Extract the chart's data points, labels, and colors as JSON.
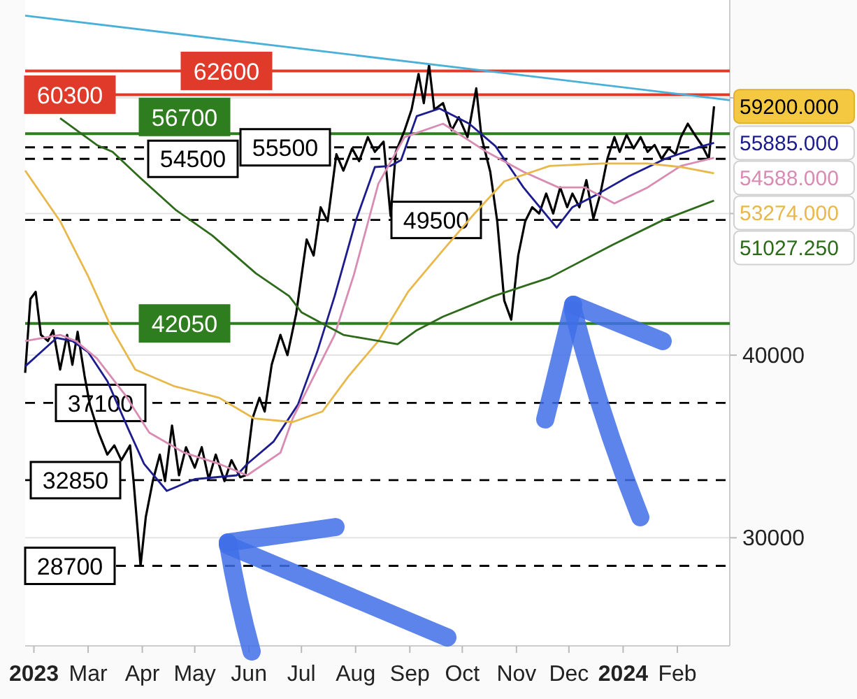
{
  "chart_data": {
    "type": "line",
    "log": true,
    "grid": "y",
    "legend": false,
    "xlim": [
      "2023-01-24",
      "2024-03-02"
    ],
    "ylim": [
      25300,
      70000
    ],
    "yticks": [
      30000,
      40000,
      {
        "value": 50000,
        "label": null
      },
      {
        "value": 60000,
        "label": null
      }
    ],
    "xticks": [
      {
        "value": "2023-01-29",
        "label": "2023"
      },
      {
        "value": "2023-03-01",
        "label": "Mar"
      },
      {
        "value": "2023-04-01",
        "label": "Apr"
      },
      {
        "value": "2023-05-01",
        "label": "May"
      },
      {
        "value": "2023-06-01",
        "label": "Jun"
      },
      {
        "value": "2023-07-01",
        "label": "Jul"
      },
      {
        "value": "2023-08-01",
        "label": "Aug"
      },
      {
        "value": "2023-09-01",
        "label": "Sep"
      },
      {
        "value": "2023-10-01",
        "label": "Oct"
      },
      {
        "value": "2023-11-01",
        "label": "Nov"
      },
      {
        "value": "2023-12-01",
        "label": "Dec"
      },
      {
        "value": "2024-01-01",
        "label": "2024"
      },
      {
        "value": "2024-02-01",
        "label": "Feb"
      }
    ],
    "series": [
      {
        "color": "#000000",
        "x": [
          "2023-01-24",
          "2023-01-27",
          "2023-01-30",
          "2023-02-02",
          "2023-02-06",
          "2023-02-09",
          "2023-02-13",
          "2023-02-17",
          "2023-02-20",
          "2023-02-23",
          "2023-02-27",
          "2023-03-02",
          "2023-03-07",
          "2023-03-12",
          "2023-03-16",
          "2023-03-20",
          "2023-03-25",
          "2023-03-27",
          "2023-03-29",
          "2023-03-31",
          "2023-04-03",
          "2023-04-07",
          "2023-04-11",
          "2023-04-14",
          "2023-04-18",
          "2023-04-22",
          "2023-04-26",
          "2023-05-01",
          "2023-05-05",
          "2023-05-09",
          "2023-05-13",
          "2023-05-18",
          "2023-05-22",
          "2023-05-27",
          "2023-05-30",
          "2023-06-03",
          "2023-06-07",
          "2023-06-10",
          "2023-06-14",
          "2023-06-19",
          "2023-06-23",
          "2023-06-28",
          "2023-07-04",
          "2023-07-08",
          "2023-07-12",
          "2023-07-16",
          "2023-07-21",
          "2023-07-25",
          "2023-07-30",
          "2023-08-03",
          "2023-08-08",
          "2023-08-12",
          "2023-08-17",
          "2023-08-21",
          "2023-08-24",
          "2023-08-29",
          "2023-09-02",
          "2023-09-06",
          "2023-09-09",
          "2023-09-12",
          "2023-09-15",
          "2023-09-20",
          "2023-09-25",
          "2023-09-29",
          "2023-10-04",
          "2023-10-09",
          "2023-10-12",
          "2023-10-17",
          "2023-10-21",
          "2023-10-25",
          "2023-10-29",
          "2023-11-02",
          "2023-11-06",
          "2023-11-10",
          "2023-11-14",
          "2023-11-18",
          "2023-11-22",
          "2023-11-26",
          "2023-11-30",
          "2023-12-03",
          "2023-12-07",
          "2023-12-11",
          "2023-12-15",
          "2023-12-19",
          "2023-12-23",
          "2023-12-27",
          "2023-12-30",
          "2024-01-03",
          "2024-01-07",
          "2024-01-11",
          "2024-01-15",
          "2024-01-19",
          "2024-01-23",
          "2024-01-27",
          "2024-01-31",
          "2024-02-03",
          "2024-02-07",
          "2024-02-11",
          "2024-02-15",
          "2024-02-19",
          "2024-02-22"
        ],
        "values": [
          38900,
          43700,
          44200,
          41300,
          40900,
          41600,
          39100,
          41300,
          39400,
          41500,
          38700,
          37000,
          35400,
          34200,
          34700,
          33900,
          34700,
          32800,
          30700,
          28700,
          31000,
          32800,
          34200,
          32800,
          35800,
          33100,
          34600,
          33500,
          34600,
          32900,
          34200,
          32800,
          33900,
          33000,
          33100,
          36200,
          37400,
          36600,
          39400,
          41300,
          40000,
          42700,
          48000,
          46800,
          50500,
          49400,
          54900,
          53500,
          55400,
          54300,
          56400,
          55100,
          56000,
          49800,
          55100,
          57000,
          58900,
          62300,
          59500,
          63200,
          58900,
          59500,
          57000,
          58200,
          56400,
          60900,
          56400,
          53400,
          49400,
          43600,
          42300,
          46800,
          49400,
          50500,
          50000,
          51600,
          50000,
          52100,
          50500,
          51600,
          50500,
          52700,
          49600,
          51600,
          54500,
          56400,
          55100,
          56600,
          55400,
          56400,
          55100,
          55700,
          54500,
          55400,
          54900,
          56400,
          57600,
          56600,
          55700,
          54500,
          59200
        ]
      },
      {
        "color": "#1c1c8f",
        "x": [
          "2023-01-24",
          "2023-02-11",
          "2023-02-20",
          "2023-03-01",
          "2023-03-12",
          "2023-03-24",
          "2023-04-02",
          "2023-04-15",
          "2023-05-01",
          "2023-05-25",
          "2023-05-31",
          "2023-06-15",
          "2023-06-29",
          "2023-07-10",
          "2023-07-20",
          "2023-08-01",
          "2023-08-12",
          "2023-08-21",
          "2023-08-27",
          "2023-09-05",
          "2023-09-18",
          "2023-10-05",
          "2023-10-20",
          "2023-11-05",
          "2023-11-24",
          "2023-12-03",
          "2023-12-18",
          "2024-01-04",
          "2024-01-25",
          "2024-02-15",
          "2024-02-22"
        ],
        "values": [
          39300,
          41100,
          40900,
          40200,
          38400,
          35600,
          33700,
          32300,
          32900,
          33100,
          33700,
          34900,
          37000,
          40200,
          43900,
          49400,
          53800,
          53900,
          54400,
          58300,
          59000,
          57600,
          55600,
          52100,
          48900,
          50500,
          51600,
          53000,
          54500,
          55600,
          55885
        ]
      },
      {
        "color": "#d98cb3",
        "x": [
          "2023-01-24",
          "2023-02-13",
          "2023-02-22",
          "2023-03-06",
          "2023-03-22",
          "2023-04-05",
          "2023-04-25",
          "2023-05-15",
          "2023-05-31",
          "2023-06-19",
          "2023-06-26",
          "2023-07-20",
          "2023-07-31",
          "2023-08-14",
          "2023-08-29",
          "2023-09-20",
          "2023-10-15",
          "2023-11-05",
          "2023-11-25",
          "2023-12-10",
          "2023-12-27",
          "2024-01-15",
          "2024-02-03",
          "2024-02-22"
        ],
        "values": [
          40900,
          41300,
          40900,
          39800,
          37600,
          35400,
          34300,
          33700,
          33100,
          34300,
          36200,
          41300,
          45400,
          52400,
          56400,
          57600,
          55100,
          53400,
          52100,
          52100,
          50800,
          52100,
          53900,
          54588
        ]
      },
      {
        "color": "#e8b84a",
        "x": [
          "2023-01-24",
          "2023-02-13",
          "2023-03-01",
          "2023-03-15",
          "2023-03-28",
          "2023-04-19",
          "2023-05-15",
          "2023-06-04",
          "2023-06-26",
          "2023-07-13",
          "2023-07-28",
          "2023-08-14",
          "2023-08-31",
          "2023-09-20",
          "2023-10-08",
          "2023-10-25",
          "2023-11-20",
          "2023-12-20",
          "2024-01-15",
          "2024-02-03",
          "2024-02-22"
        ],
        "values": [
          53500,
          49400,
          45300,
          41600,
          39100,
          38100,
          37400,
          36200,
          36000,
          36600,
          38700,
          40900,
          44200,
          47200,
          50000,
          52600,
          53900,
          54100,
          54100,
          53800,
          53274
        ]
      },
      {
        "color": "#2d6a1a",
        "x": [
          "2023-02-13",
          "2023-03-06",
          "2023-03-15",
          "2023-03-30",
          "2023-04-20",
          "2023-05-11",
          "2023-06-05",
          "2023-06-24",
          "2023-07-01",
          "2023-07-25",
          "2023-08-04",
          "2023-08-25",
          "2023-09-05",
          "2023-09-20",
          "2023-10-19",
          "2023-11-20",
          "2023-12-26",
          "2024-01-24",
          "2024-02-22"
        ],
        "values": [
          58100,
          55700,
          55100,
          53000,
          50300,
          48300,
          45500,
          43900,
          42800,
          41300,
          41100,
          40700,
          41600,
          42500,
          43900,
          45200,
          47600,
          49500,
          51027.25
        ]
      },
      {
        "color": "#4ab0d9",
        "x": [
          "2023-01-24",
          "2024-03-02"
        ],
        "values": [
          68300,
          59780
        ]
      }
    ],
    "ref_lines": [
      {
        "axis": "y",
        "value": 62600,
        "label": "62600",
        "color": "#e03a2b",
        "line_style": "solid"
      },
      {
        "axis": "y",
        "value": 60300,
        "label": "60300",
        "color": "#e03a2b",
        "line_style": "solid"
      },
      {
        "axis": "y",
        "value": 56700,
        "label": "56700",
        "color": "#2e7d1f",
        "line_style": "solid"
      },
      {
        "axis": "y",
        "value": 55500,
        "label": "55500",
        "color": "#000000",
        "line_style": "dashed"
      },
      {
        "axis": "y",
        "value": 54500,
        "label": "54500",
        "color": "#000000",
        "line_style": "dashed"
      },
      {
        "axis": "y",
        "value": 49500,
        "label": "49500",
        "color": "#000000",
        "line_style": "dashed"
      },
      {
        "axis": "y",
        "value": 42050,
        "label": "42050",
        "color": "#2e7d1f",
        "line_style": "solid"
      },
      {
        "axis": "y",
        "value": 37100,
        "label": "37100",
        "color": "#000000",
        "line_style": "dashed"
      },
      {
        "axis": "y",
        "value": 32850,
        "label": "32850",
        "color": "#000000",
        "line_style": "dashed"
      },
      {
        "axis": "y",
        "value": 28700,
        "label": "28700",
        "color": "#000000",
        "line_style": "dashed"
      }
    ],
    "annotations": [
      {
        "text": "59200.000",
        "x": "2024-02-22",
        "y": 59200
      },
      {
        "text": "55885.000",
        "x": "2024-02-22",
        "y": 55885
      },
      {
        "text": "54588.000",
        "x": "2024-02-22",
        "y": 54588
      },
      {
        "text": "53274.000",
        "x": "2024-02-22",
        "y": 53274
      },
      {
        "text": "51027.250",
        "x": "2024-02-22",
        "y": 51027.25
      }
    ]
  }
}
